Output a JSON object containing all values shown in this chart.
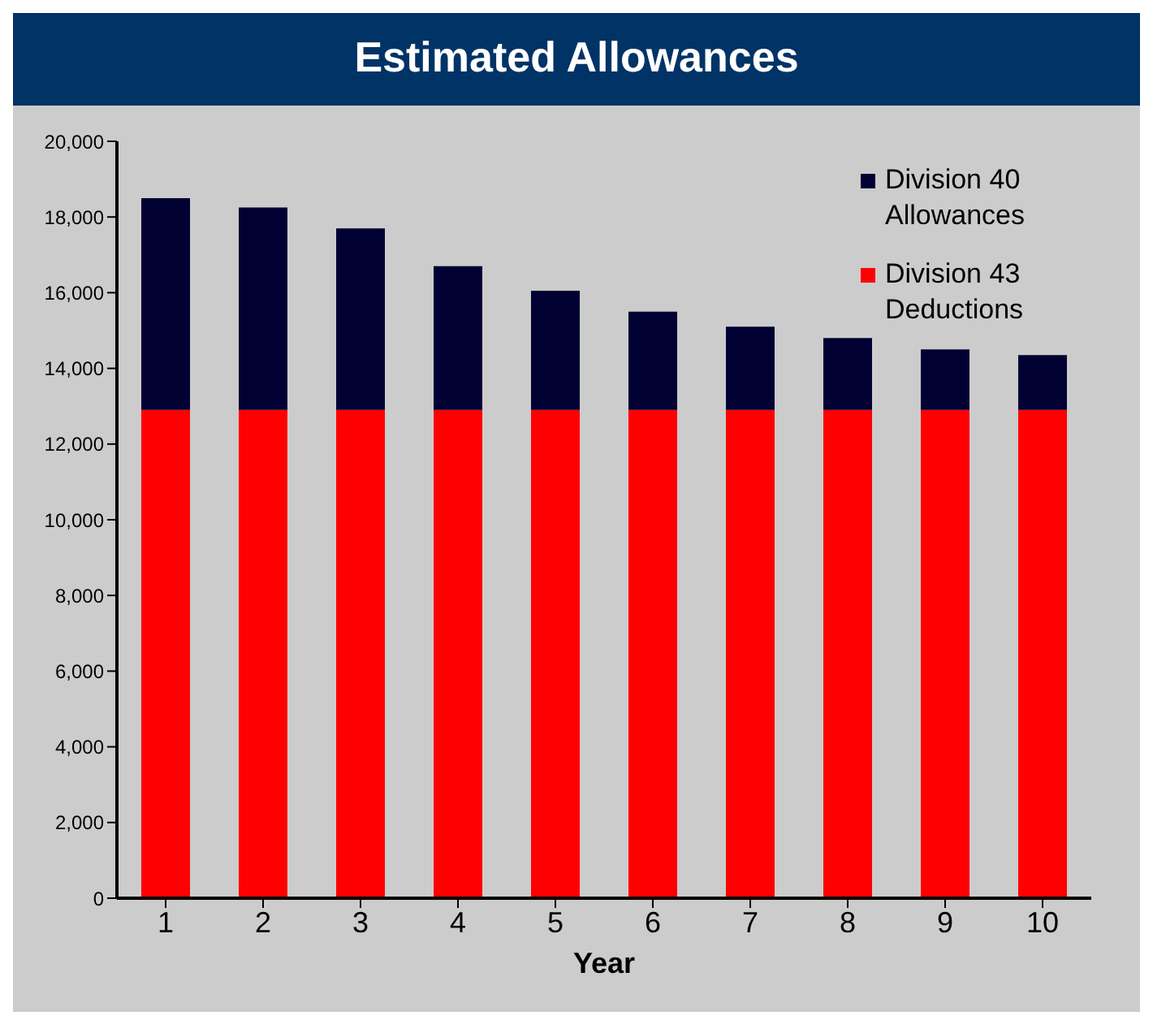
{
  "chart_data": {
    "type": "bar",
    "title": "Estimated Allowances",
    "xlabel": "Year",
    "stacked": true,
    "categories": [
      "1",
      "2",
      "3",
      "4",
      "5",
      "6",
      "7",
      "8",
      "9",
      "10"
    ],
    "series": [
      {
        "name": "Division 43 Deductions",
        "color": "#ff0000",
        "values": [
          12900,
          12900,
          12900,
          12900,
          12900,
          12900,
          12900,
          12900,
          12900,
          12900
        ]
      },
      {
        "name": "Division 40 Allowances",
        "color": "#000033",
        "values": [
          5600,
          5350,
          4800,
          3800,
          3150,
          2600,
          2200,
          1900,
          1600,
          1450
        ]
      }
    ],
    "ylim": [
      0,
      20000
    ],
    "yticks": [
      {
        "value": 0,
        "label": "0"
      },
      {
        "value": 2000,
        "label": "2,000"
      },
      {
        "value": 4000,
        "label": "4,000"
      },
      {
        "value": 6000,
        "label": "6,000"
      },
      {
        "value": 8000,
        "label": "8,000"
      },
      {
        "value": 10000,
        "label": "10,000"
      },
      {
        "value": 12000,
        "label": "12,000"
      },
      {
        "value": 14000,
        "label": "14,000"
      },
      {
        "value": 16000,
        "label": "16,000"
      },
      {
        "value": 18000,
        "label": "18,000"
      },
      {
        "value": 20000,
        "label": "20,000"
      }
    ],
    "legend": "top right"
  }
}
